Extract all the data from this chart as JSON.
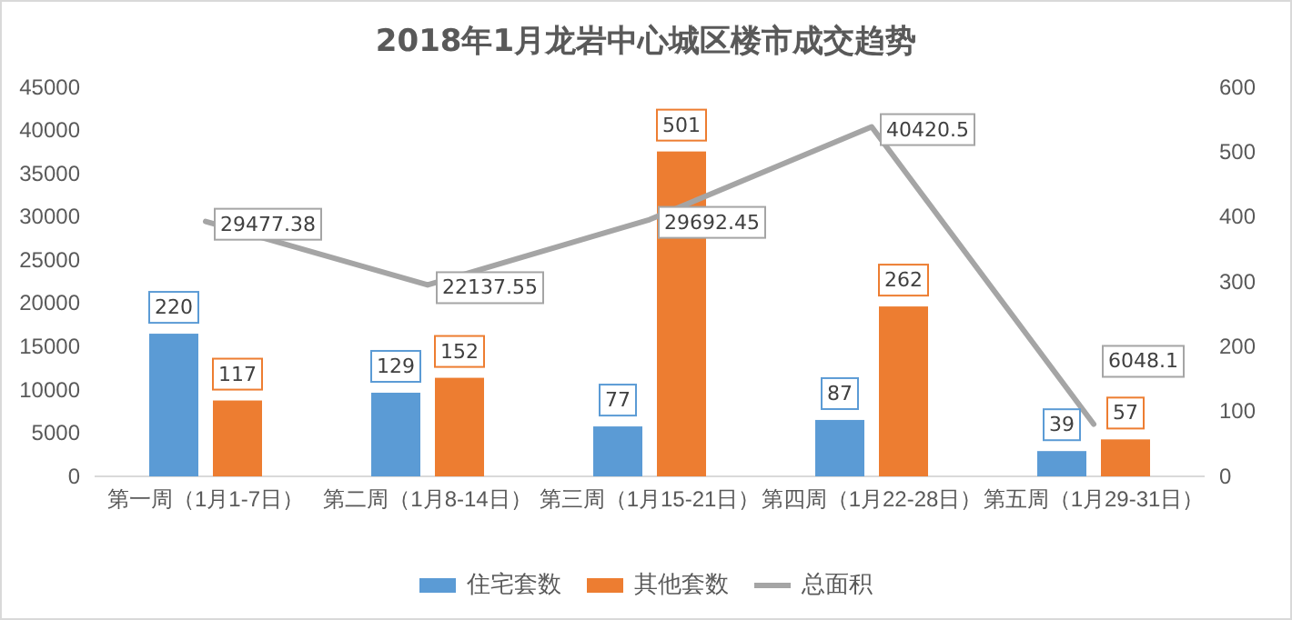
{
  "chart_data": {
    "type": "bar",
    "title": "2018年1月龙岩中心城区楼市成交趋势",
    "categories": [
      "第一周（1月1-7日）",
      "第二周（1月8-14日）",
      "第三周（1月15-21日）",
      "第四周（1月22-28日）",
      "第五周（1月29-31日）"
    ],
    "series": [
      {
        "name": "住宅套数",
        "color": "#5b9bd5",
        "axis": "y2",
        "values": [
          220,
          129,
          77,
          87,
          39
        ]
      },
      {
        "name": "其他套数",
        "color": "#ed7d31",
        "axis": "y2",
        "values": [
          117,
          152,
          501,
          262,
          57
        ]
      },
      {
        "name": "总面积",
        "color": "#a5a5a5",
        "type": "line",
        "values": [
          29477.38,
          22137.55,
          29692.45,
          40420.5,
          6048.1
        ]
      }
    ],
    "ylim": [
      0,
      45000
    ],
    "yticks": [
      0,
      5000,
      10000,
      15000,
      20000,
      25000,
      30000,
      35000,
      40000,
      45000
    ],
    "y2lim": [
      0,
      600
    ],
    "y2ticks": [
      0,
      100,
      200,
      300,
      400,
      500,
      600
    ],
    "data_labels": true,
    "legend": "bottom"
  }
}
